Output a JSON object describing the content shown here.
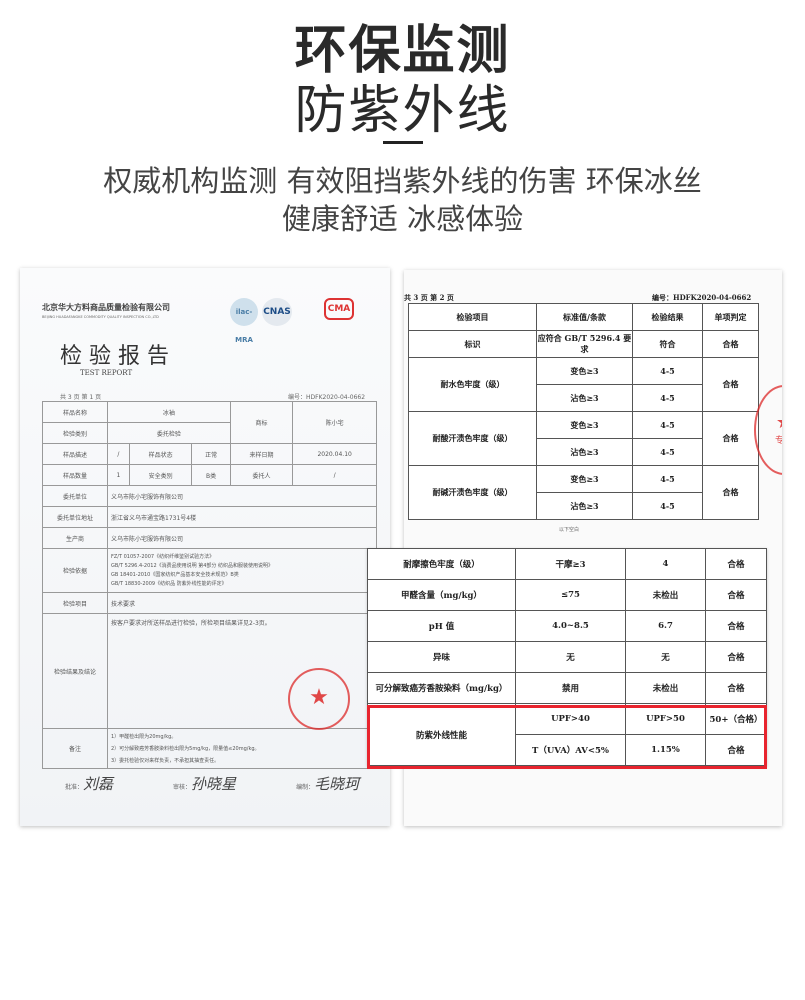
{
  "header": {
    "title": "环保监测",
    "subtitle": "防紫外线",
    "tagline_1": "权威机构监测 有效阻挡紫外线的伤害 环保冰丝",
    "tagline_2": "健康舒适 冰感体验"
  },
  "left_doc": {
    "company": "北京华大方料商品质量检验有限公司",
    "company_en": "BEIJING HUADAFANGKE COMMODITY QUALITY INSPECTION CO.,LTD",
    "title": "检 验 报 告",
    "title_en": "TEST REPORT",
    "logos": [
      "ilac-MRA",
      "CNAS",
      "CMA"
    ],
    "page": "共 3 页 第 1 页",
    "number": "编号：HDFK2020-04-0662",
    "rows": [
      [
        "样品名称",
        "冰袖",
        "商标",
        "陈小宅"
      ],
      [
        "检验类别",
        "委托检验"
      ],
      [
        "样品描述",
        "/",
        "样品状态",
        "正常",
        "来样日期",
        "2020.04.10"
      ],
      [
        "样品数量",
        "1",
        "安全类别",
        "B类",
        "委托人",
        "/"
      ],
      [
        "委托单位",
        "义乌市陈小宅服饰有限公司"
      ],
      [
        "委托单位地址",
        "浙江省义乌市通宝路1731号4楼"
      ],
      [
        "生产商",
        "义乌市陈小宅服饰有限公司"
      ],
      [
        "检验依据",
        "FZ/T 01057-2007《纺织纤维鉴别试验方法》",
        "GB/T 5296.4-2012《消费品使用说明 第4部分 纺织品和服装使用说明》",
        "GB 18401-2010《国家纺织产品基本安全技术规范》B类",
        "GB/T 18830-2009《纺织品 防紫外线性能的评定》"
      ],
      [
        "检验项目",
        "技术要求"
      ],
      [
        "检验结果及结论",
        "按客户要求对所送样品进行检验，所检项目结果详见2-3页。"
      ],
      [
        "备注",
        "1）甲醛检出限为20mg/kg。",
        "2）可分解致癌芳香胺染料检出限为5mg/kg，限量值≤20mg/kg。",
        "3）委托检验仅对来样负责，不承担其抽查责任。"
      ]
    ],
    "signatures": [
      {
        "label": "批准：",
        "name": "刘磊"
      },
      {
        "label": "审核：",
        "name": "孙晓星"
      },
      {
        "label": "编制：",
        "name": "毛晓珂"
      }
    ]
  },
  "right_doc": {
    "page": "共 3 页 第 2 页",
    "number": "编号：HDFK2020-04-0662",
    "headers": [
      "检验项目",
      "标准值/条款",
      "检验结果",
      "单项判定"
    ],
    "row_label": {
      "item": "标识",
      "standard": "应符合 GB/T 5296.4 要求",
      "result": "符合",
      "verdict": "合格"
    },
    "groups": [
      {
        "item": "耐水色牢度（级）",
        "sub": [
          [
            "变色≥3",
            "4-5"
          ],
          [
            "沾色≥3",
            "4-5"
          ]
        ],
        "verdict": "合格"
      },
      {
        "item": "耐酸汗渍色牢度（级）",
        "sub": [
          [
            "变色≥3",
            "4-5"
          ],
          [
            "沾色≥3",
            "4-5"
          ]
        ],
        "verdict": "合格"
      },
      {
        "item": "耐碱汗渍色牢度（级）",
        "sub": [
          [
            "变色≥3",
            "4-5"
          ],
          [
            "沾色≥3",
            "4-5"
          ]
        ],
        "verdict": "合格"
      }
    ],
    "end_note": "以下空白",
    "stamp_text": "专用"
  },
  "overlay_table": {
    "rows": [
      [
        "耐摩擦色牢度（级）",
        "干摩≥3",
        "4",
        "合格"
      ],
      [
        "甲醛含量（mg/kg）",
        "≤75",
        "未检出",
        "合格"
      ],
      [
        "pH 值",
        "4.0~8.5",
        "6.7",
        "合格"
      ],
      [
        "异味",
        "无",
        "无",
        "合格"
      ],
      [
        "可分解致癌芳香胺染料（mg/kg）",
        "禁用",
        "未检出",
        "合格"
      ]
    ],
    "uv": {
      "item": "防紫外线性能",
      "sub": [
        [
          "UPF>40",
          "UPF>50",
          "50+（合格）"
        ],
        [
          "T（UVA）AV<5%",
          "1.15%",
          "合格"
        ]
      ]
    },
    "highlight_color": "#e8242e"
  }
}
